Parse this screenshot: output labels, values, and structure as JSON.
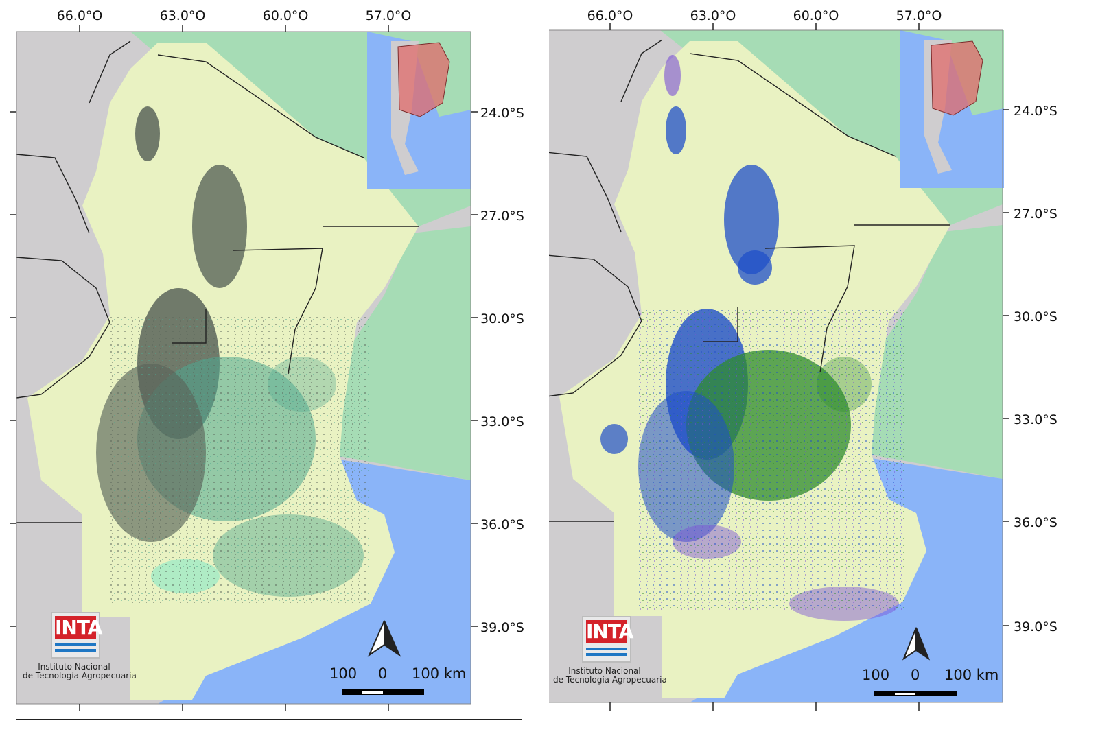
{
  "panels": [
    {
      "id": "left",
      "longitude_labels": [
        "66.0°O",
        "63.0°O",
        "60.0°O",
        "57.0°O"
      ],
      "latitude_labels": [
        "24.0°S",
        "27.0°S",
        "30.0°S",
        "33.0°S",
        "36.0°S",
        "39.0°S"
      ],
      "classification_colors": [
        "#5a655a",
        "#4ea78f",
        "#7fe8c8"
      ],
      "scale_bar": {
        "left": "100",
        "center": "0",
        "right": "100 km"
      },
      "logo": {
        "acronym": "INTA",
        "name_line1": "Instituto Nacional",
        "name_line2": "de Tecnología Agropecuaria"
      }
    },
    {
      "id": "right",
      "longitude_labels": [
        "66.0°O",
        "63.0°O",
        "60.0°O",
        "57.0°O"
      ],
      "latitude_labels": [
        "24.0°S",
        "27.0°S",
        "30.0°S",
        "33.0°S",
        "36.0°S",
        "39.0°S"
      ],
      "classification_colors": [
        "#1f4fc8",
        "#2e8b2e",
        "#7a4fd6"
      ],
      "scale_bar": {
        "left": "100",
        "center": "0",
        "right": "100 km"
      },
      "logo": {
        "acronym": "INTA",
        "name_line1": "Instituto Nacional",
        "name_line2": "de Tecnología Agropecuaria"
      }
    }
  ],
  "basemap_colors": {
    "study_area": "#e9f2c2",
    "neighbor_land": "#cfcdcf",
    "vegetation": "#a6dcb5",
    "water": "#8ab4f8",
    "inset_highlight": "#e06b6b",
    "border_line": "#222222"
  },
  "icons": [
    "north-arrow-icon",
    "inset-locator-map"
  ]
}
